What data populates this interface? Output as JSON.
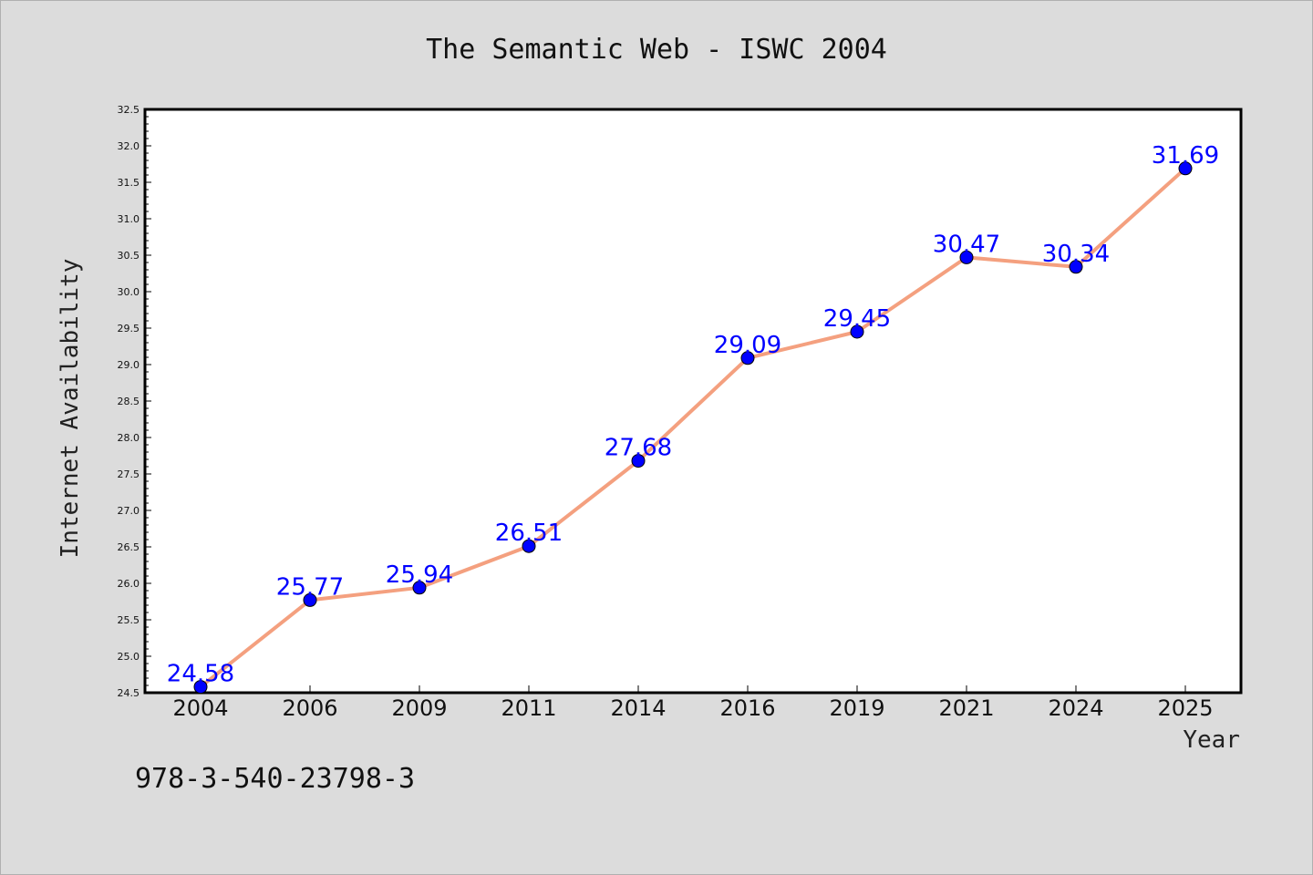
{
  "chart_data": {
    "type": "line",
    "title": "The Semantic Web - ISWC 2004",
    "xlabel": "Year",
    "ylabel": "Internet Availability",
    "categories": [
      "2004",
      "2006",
      "2009",
      "2011",
      "2014",
      "2016",
      "2019",
      "2021",
      "2024",
      "2025"
    ],
    "series": [
      {
        "values": [
          24.58,
          25.77,
          25.94,
          26.51,
          27.68,
          29.09,
          29.45,
          30.47,
          30.34,
          31.69
        ],
        "labels": [
          "24.58",
          "25.77",
          "25.94",
          "26.51",
          "27.68",
          "29.09",
          "29.45",
          "30.47",
          "30.34",
          "31.69"
        ],
        "line_color": "#f4a07f",
        "marker_color": "#0000ff"
      }
    ],
    "ylim": [
      24.5,
      32.5
    ],
    "yticks": [
      "24.5",
      "25.0",
      "25.5",
      "26.0",
      "26.5",
      "27.0",
      "27.5",
      "28.0",
      "28.5",
      "29.0",
      "29.5",
      "30.0",
      "30.5",
      "31.0",
      "31.5",
      "32.0",
      "32.5"
    ],
    "grid": false,
    "legend": "none",
    "annotation": "978-3-540-23798-3",
    "colors": {
      "background": "#dcdcdc",
      "plot_background": "#ffffff",
      "axis": "#000000"
    }
  }
}
